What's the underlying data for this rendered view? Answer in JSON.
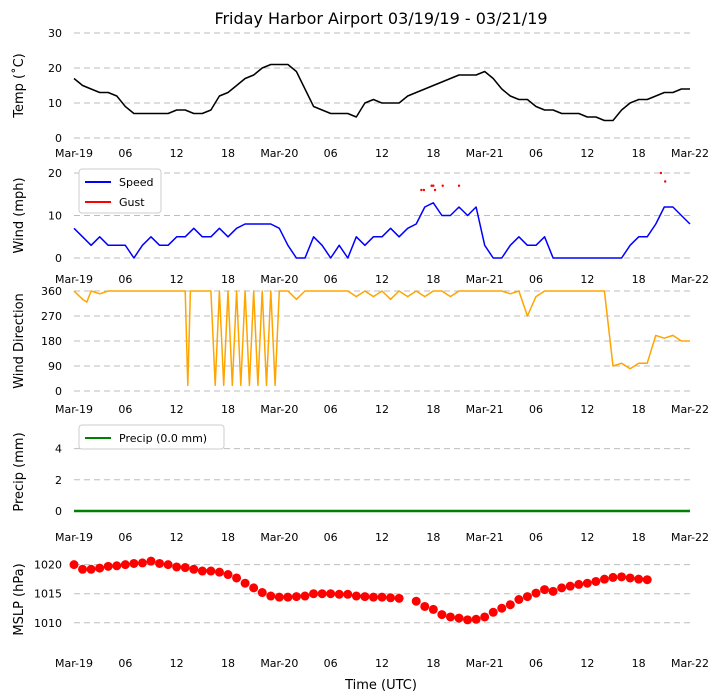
{
  "title": "Friday Harbor Airport 03/19/19 - 03/21/19",
  "x_axis_label": "Time (UTC)",
  "x_range_hours": [
    0,
    72
  ],
  "x_ticks": [
    {
      "h": 0,
      "label": "Mar-19"
    },
    {
      "h": 6,
      "label": "06"
    },
    {
      "h": 12,
      "label": "12"
    },
    {
      "h": 18,
      "label": "18"
    },
    {
      "h": 24,
      "label": "Mar-20"
    },
    {
      "h": 30,
      "label": "06"
    },
    {
      "h": 36,
      "label": "12"
    },
    {
      "h": 42,
      "label": "18"
    },
    {
      "h": 48,
      "label": "Mar-21"
    },
    {
      "h": 54,
      "label": "06"
    },
    {
      "h": 60,
      "label": "12"
    },
    {
      "h": 66,
      "label": "18"
    },
    {
      "h": 72,
      "label": "Mar-22"
    }
  ],
  "chart_data": [
    {
      "type": "line",
      "ylabel": "Temp ($^\\circ$C)",
      "ylabel_display": "Temp (˚C)",
      "ylim": [
        0,
        30
      ],
      "yticks": [
        0,
        10,
        20,
        30
      ],
      "grid": true,
      "series": [
        {
          "name": "Temp",
          "color": "#000000",
          "x": [
            0,
            1,
            2,
            3,
            4,
            5,
            6,
            7,
            8,
            9,
            10,
            11,
            12,
            13,
            14,
            15,
            16,
            17,
            18,
            19,
            20,
            21,
            22,
            23,
            24,
            25,
            26,
            27,
            28,
            29,
            30,
            31,
            32,
            33,
            34,
            35,
            36,
            37,
            38,
            39,
            40,
            41,
            42,
            43,
            44,
            45,
            46,
            47,
            48,
            49,
            50,
            51,
            52,
            53,
            54,
            55,
            56,
            57,
            58,
            59,
            60,
            61,
            62,
            63,
            64,
            65,
            66,
            67,
            68,
            69,
            70,
            71,
            72
          ],
          "y": [
            17,
            15,
            14,
            13,
            13,
            12,
            9,
            7,
            7,
            7,
            7,
            7,
            8,
            8,
            7,
            7,
            8,
            12,
            13,
            15,
            17,
            18,
            20,
            21,
            21,
            21,
            19,
            14,
            9,
            8,
            7,
            7,
            7,
            6,
            10,
            11,
            10,
            10,
            10,
            12,
            13,
            14,
            15,
            16,
            17,
            18,
            18,
            18,
            19,
            17,
            14,
            12,
            11,
            11,
            9,
            8,
            8,
            7,
            7,
            7,
            6,
            6,
            5,
            5,
            8,
            10,
            11,
            11,
            12,
            13,
            13,
            14,
            14
          ]
        }
      ]
    },
    {
      "type": "line",
      "ylabel": "Wind (mph)",
      "ylim": [
        0,
        20
      ],
      "yticks": [
        0,
        10,
        20
      ],
      "grid": true,
      "legend": [
        "Speed",
        "Gust"
      ],
      "legend_position": "top-left",
      "series": [
        {
          "name": "Speed",
          "color": "#0000ff",
          "x": [
            0,
            1,
            2,
            3,
            4,
            5,
            6,
            7,
            8,
            9,
            10,
            11,
            12,
            13,
            14,
            15,
            16,
            17,
            18,
            19,
            20,
            21,
            22,
            23,
            24,
            25,
            26,
            27,
            28,
            29,
            30,
            31,
            32,
            33,
            34,
            35,
            36,
            37,
            38,
            39,
            40,
            41,
            42,
            43,
            44,
            45,
            46,
            47,
            48,
            49,
            50,
            51,
            52,
            53,
            54,
            55,
            56,
            57,
            58,
            59,
            60,
            61,
            62,
            63,
            64,
            65,
            66,
            67,
            68,
            69,
            70,
            71,
            72
          ],
          "y": [
            7,
            5,
            3,
            5,
            3,
            3,
            3,
            0,
            3,
            5,
            3,
            3,
            5,
            5,
            7,
            5,
            5,
            7,
            5,
            7,
            8,
            8,
            8,
            8,
            7,
            3,
            0,
            0,
            5,
            3,
            0,
            3,
            0,
            5,
            3,
            5,
            5,
            7,
            5,
            7,
            8,
            12,
            13,
            10,
            10,
            12,
            10,
            12,
            3,
            0,
            0,
            3,
            5,
            3,
            3,
            5,
            0,
            0,
            0,
            0,
            0,
            0,
            0,
            0,
            0,
            3,
            5,
            5,
            8,
            12,
            12,
            10,
            8
          ]
        },
        {
          "name": "Gust",
          "color": "#ff0000",
          "style": "points",
          "x": [
            40.6,
            40.9,
            41.8,
            42.0,
            42.2,
            43.1,
            45.0,
            68.6,
            69.1
          ],
          "y": [
            16,
            16,
            17,
            17,
            16,
            17,
            17,
            20,
            18
          ]
        }
      ]
    },
    {
      "type": "line",
      "ylabel": "Wind Direction",
      "ylim": [
        0,
        360
      ],
      "yticks": [
        0,
        90,
        180,
        270,
        360
      ],
      "grid": true,
      "series": [
        {
          "name": "Direction",
          "color": "#ffa500",
          "x": [
            0,
            1,
            1.5,
            2,
            3,
            4,
            5,
            6,
            7,
            8,
            9,
            10,
            11,
            12,
            13,
            13.3,
            13.6,
            14,
            15,
            16,
            16.5,
            17,
            17.5,
            18,
            18.5,
            19,
            19.5,
            20,
            20.5,
            21,
            21.5,
            22,
            22.5,
            23,
            23.5,
            24,
            25,
            26,
            27,
            28,
            29,
            30,
            31,
            32,
            33,
            34,
            35,
            36,
            37,
            38,
            39,
            40,
            41,
            42,
            43,
            44,
            45,
            46,
            47,
            48,
            49,
            50,
            51,
            52,
            53,
            54,
            55,
            56,
            57,
            58,
            59,
            60,
            61,
            62,
            63,
            64,
            65,
            66,
            67,
            68,
            69,
            70,
            71,
            72
          ],
          "y": [
            360,
            330,
            320,
            360,
            350,
            360,
            360,
            360,
            360,
            360,
            360,
            360,
            360,
            360,
            360,
            20,
            360,
            360,
            360,
            360,
            20,
            360,
            20,
            360,
            20,
            360,
            20,
            360,
            20,
            360,
            20,
            360,
            20,
            360,
            20,
            360,
            360,
            330,
            360,
            360,
            360,
            360,
            360,
            360,
            340,
            360,
            340,
            360,
            330,
            360,
            340,
            360,
            340,
            360,
            360,
            340,
            360,
            360,
            360,
            360,
            360,
            360,
            350,
            360,
            270,
            340,
            360,
            360,
            360,
            360,
            360,
            360,
            360,
            360,
            90,
            100,
            80,
            100,
            100,
            200,
            190,
            200,
            180,
            180
          ]
        }
      ]
    },
    {
      "type": "line",
      "ylabel": "Precip (mm)",
      "ylim": [
        0,
        5
      ],
      "yticks": [
        0,
        2,
        4
      ],
      "grid": true,
      "legend": [
        "Precip (0.0 mm)"
      ],
      "legend_position": "top-left",
      "series": [
        {
          "name": "Precip (0.0 mm)",
          "color": "#008000",
          "x": [
            0,
            72
          ],
          "y": [
            0,
            0
          ]
        }
      ]
    },
    {
      "type": "scatter",
      "ylabel": "MSLP (hPa)",
      "ylim": [
        1006,
        1022
      ],
      "yticks": [
        1010,
        1015,
        1020
      ],
      "grid": true,
      "series": [
        {
          "name": "MSLP",
          "color": "#ff0000",
          "x": [
            0,
            1,
            2,
            3,
            4,
            5,
            6,
            7,
            8,
            9,
            10,
            11,
            12,
            13,
            14,
            15,
            16,
            17,
            18,
            19,
            20,
            21,
            22,
            23,
            24,
            25,
            26,
            27,
            28,
            29,
            30,
            31,
            32,
            33,
            34,
            35,
            36,
            37,
            38,
            39,
            40,
            41,
            42,
            43,
            44,
            45,
            46,
            47,
            48,
            49,
            50,
            51,
            52,
            53,
            54,
            55,
            56,
            57,
            58,
            59,
            60,
            61,
            62,
            63,
            64,
            65,
            66,
            67,
            68,
            69,
            70,
            71,
            72
          ],
          "y": [
            1020,
            1019.2,
            1019.2,
            1019.4,
            1019.7,
            1019.8,
            1020.0,
            1020.2,
            1020.3,
            1020.6,
            1020.2,
            1020.0,
            1019.6,
            1019.5,
            1019.2,
            1018.9,
            1018.9,
            1018.7,
            1018.3,
            1017.7,
            1016.8,
            1016.0,
            1015.2,
            1014.6,
            1014.4,
            1014.4,
            1014.5,
            1014.6,
            1015.0,
            1015.0,
            1015.0,
            1014.9,
            1014.9,
            1014.6,
            1014.5,
            1014.4,
            1014.4,
            1014.3,
            1014.2,
            null,
            1013.7,
            1012.8,
            1012.3,
            1011.4,
            1011.0,
            1010.8,
            1010.5,
            1010.6,
            1011.0,
            1011.8,
            1012.5,
            1013.1,
            1014.0,
            1014.5,
            1015.1,
            1015.7,
            1015.4,
            1016.0,
            1016.3,
            1016.6,
            1016.8,
            1017.1,
            1017.5,
            1017.8,
            1017.9,
            1017.7,
            1017.5,
            1017.4,
            null,
            null,
            null,
            null,
            null
          ]
        }
      ]
    }
  ]
}
